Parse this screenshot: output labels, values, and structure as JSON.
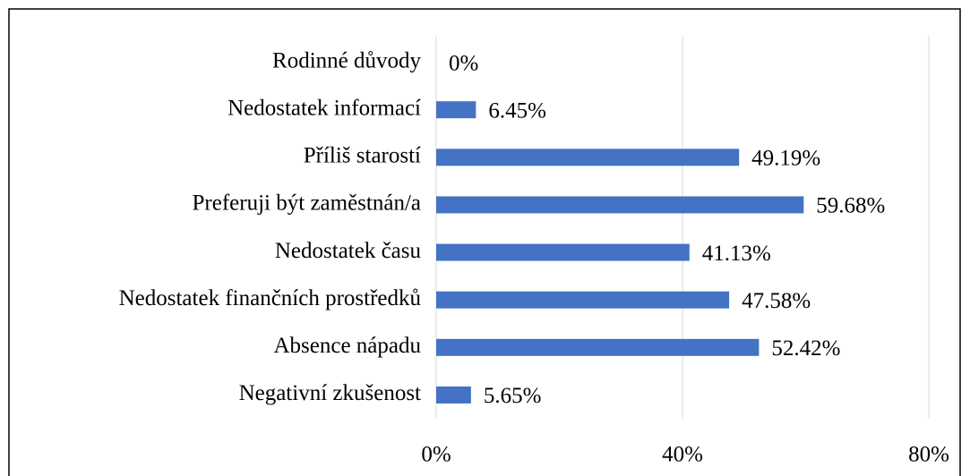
{
  "chart_data": {
    "type": "barh",
    "categories": [
      "Rodinné důvody",
      "Nedostatek informací",
      "Příliš starostí",
      "Preferuji být zaměstnán/a",
      "Nedostatek času",
      "Nedostatek finančních prostředků",
      "Absence nápadu",
      "Negativní zkušenost"
    ],
    "values": [
      0,
      6.45,
      49.19,
      59.68,
      41.13,
      47.58,
      52.42,
      5.65
    ],
    "value_labels": [
      "0%",
      "6.45%",
      "49.19%",
      "59.68%",
      "41.13%",
      "47.58%",
      "52.42%",
      "5.65%"
    ],
    "color": "#4472c4",
    "xlim": [
      0,
      80
    ],
    "xticks": [
      {
        "value": 0,
        "label": "0%"
      },
      {
        "value": 40,
        "label": "40%"
      },
      {
        "value": 80,
        "label": "80%"
      }
    ],
    "grid": true
  }
}
